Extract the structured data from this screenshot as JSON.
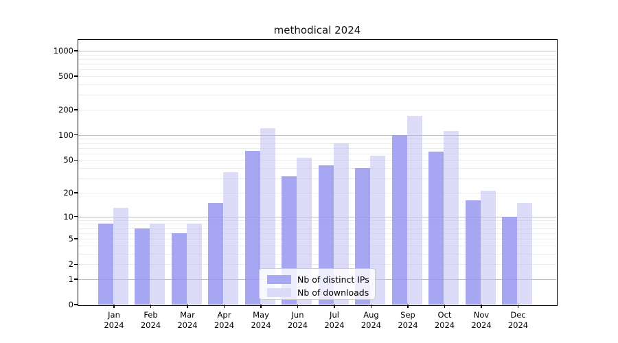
{
  "title": "methodical 2024",
  "legend": {
    "items": [
      {
        "label": "Nb of distinct IPs",
        "color": "#a8a8f3"
      },
      {
        "label": "Nb of downloads",
        "color": "#dcdcf8"
      }
    ]
  },
  "chart_data": {
    "type": "bar",
    "title": "methodical 2024",
    "xlabel": "",
    "ylabel": "",
    "scale": "log10(value+1)",
    "grid": true,
    "legend_position": "lower center",
    "categories": [
      "Jan 2024",
      "Feb 2024",
      "Mar 2024",
      "Apr 2024",
      "May 2024",
      "Jun 2024",
      "Jul 2024",
      "Aug 2024",
      "Sep 2024",
      "Oct 2024",
      "Nov 2024",
      "Dec 2024"
    ],
    "series": [
      {
        "name": "Nb of distinct IPs",
        "color": "#a8a8f3",
        "values": [
          8,
          7,
          6,
          15,
          65,
          32,
          43,
          40,
          100,
          63,
          16,
          10
        ]
      },
      {
        "name": "Nb of downloads",
        "color": "#dcdcf8",
        "values": [
          13,
          8,
          8,
          36,
          120,
          53,
          80,
          56,
          170,
          112,
          21,
          15
        ]
      }
    ],
    "y_ticks": [
      0,
      1,
      2,
      5,
      10,
      20,
      50,
      100,
      200,
      500,
      1000
    ],
    "ylim": [
      0,
      1350
    ]
  }
}
